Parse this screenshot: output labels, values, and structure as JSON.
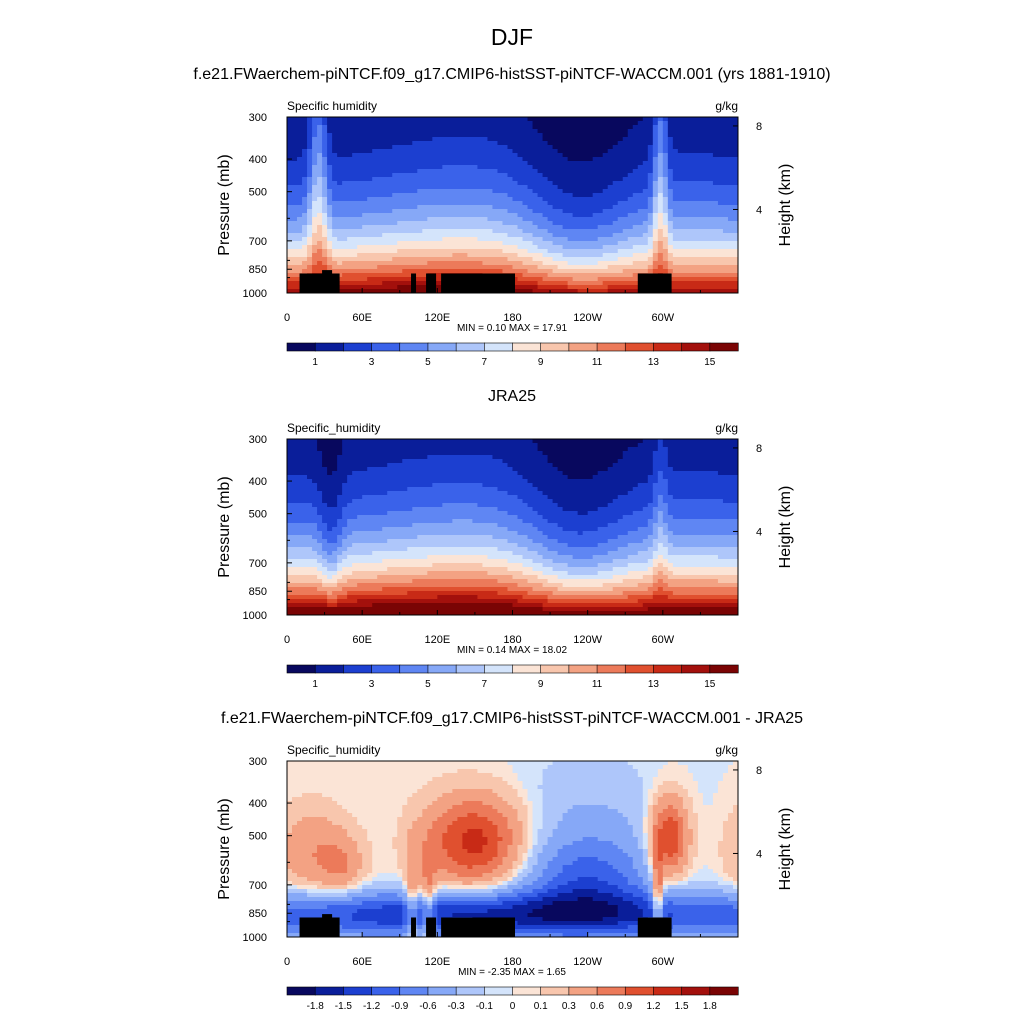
{
  "figure": {
    "season": "DJF",
    "top_title": "f.e21.FWaerchem-piNTCF.f09_g17.CMIP6-histSST-piNTCF-WACCM.001 (yrs 1881-1910)",
    "middle_title": "JRA25",
    "bottom_title": "f.e21.FWaerchem-piNTCF.f09_g17.CMIP6-histSST-piNTCF-WACCM.001 - JRA25"
  },
  "chart_data": [
    {
      "type": "heatmap",
      "variable": "Specific humidity",
      "units": "g/kg",
      "ylabel": "Pressure (mb)",
      "y2label": "Height (km)",
      "x_ticks": [
        "0",
        "60E",
        "120E",
        "180",
        "120W",
        "60W"
      ],
      "x_tick_lons": [
        0,
        60,
        120,
        180,
        240,
        300
      ],
      "xlim": [
        0,
        360
      ],
      "y_ticks": [
        "300",
        "400",
        "500",
        "700",
        "850",
        "1000"
      ],
      "y_tick_values": [
        300,
        400,
        500,
        700,
        850,
        1000
      ],
      "ylim": [
        1000,
        300
      ],
      "y2_ticks": [
        "8",
        "4"
      ],
      "y2_tick_values": [
        8,
        4
      ],
      "stats": "MIN =   0.10  MAX =  17.91",
      "colorbar_labels": [
        "1",
        "3",
        "5",
        "7",
        "9",
        "11",
        "13",
        "15"
      ],
      "colorbar_levels": [
        1,
        2,
        3,
        4,
        5,
        6,
        7,
        8,
        9,
        10,
        11,
        12,
        13,
        14,
        15
      ]
    },
    {
      "type": "heatmap",
      "variable": "Specific_humidity",
      "units": "g/kg",
      "ylabel": "Pressure (mb)",
      "y2label": "Height (km)",
      "x_ticks": [
        "0",
        "60E",
        "120E",
        "180",
        "120W",
        "60W"
      ],
      "x_tick_lons": [
        0,
        60,
        120,
        180,
        240,
        300
      ],
      "xlim": [
        0,
        360
      ],
      "y_ticks": [
        "300",
        "400",
        "500",
        "700",
        "850",
        "1000"
      ],
      "y_tick_values": [
        300,
        400,
        500,
        700,
        850,
        1000
      ],
      "ylim": [
        1000,
        300
      ],
      "y2_ticks": [
        "8",
        "4"
      ],
      "y2_tick_values": [
        8,
        4
      ],
      "stats": "MIN =   0.14  MAX =  18.02",
      "colorbar_labels": [
        "1",
        "3",
        "5",
        "7",
        "9",
        "11",
        "13",
        "15"
      ],
      "colorbar_levels": [
        1,
        2,
        3,
        4,
        5,
        6,
        7,
        8,
        9,
        10,
        11,
        12,
        13,
        14,
        15
      ]
    },
    {
      "type": "heatmap",
      "variable": "Specific_humidity",
      "units": "g/kg",
      "ylabel": "Pressure (mb)",
      "y2label": "Height (km)",
      "x_ticks": [
        "0",
        "60E",
        "120E",
        "180",
        "120W",
        "60W"
      ],
      "x_tick_lons": [
        0,
        60,
        120,
        180,
        240,
        300
      ],
      "xlim": [
        0,
        360
      ],
      "y_ticks": [
        "300",
        "400",
        "500",
        "700",
        "850",
        "1000"
      ],
      "y_tick_values": [
        300,
        400,
        500,
        700,
        850,
        1000
      ],
      "ylim": [
        1000,
        300
      ],
      "y2_ticks": [
        "8",
        "4"
      ],
      "y2_tick_values": [
        8,
        4
      ],
      "stats": "MIN =  -2.35  MAX =   1.65",
      "colorbar_labels": [
        "-1.8",
        "-1.5",
        "-1.2",
        "-0.9",
        "-0.6",
        "-0.3",
        "-0.1",
        "0",
        "0.1",
        "0.3",
        "0.6",
        "0.9",
        "1.2",
        "1.5",
        "1.8"
      ],
      "colorbar_levels": [
        -1.8,
        -1.5,
        -1.2,
        -0.9,
        -0.6,
        -0.3,
        -0.1,
        0,
        0.1,
        0.3,
        0.6,
        0.9,
        1.2,
        1.5,
        1.8
      ]
    }
  ],
  "colormap": [
    "#08085e",
    "#0a1e9a",
    "#1c3fd0",
    "#3a62ea",
    "#5f86f3",
    "#86a8f7",
    "#aec6fa",
    "#d4e4fb",
    "#fbe4d6",
    "#f8c6ad",
    "#f3a283",
    "#ec7a5a",
    "#e0502f",
    "#c82a16",
    "#a3100c",
    "#7a0404"
  ],
  "terrain_color": "#000000"
}
